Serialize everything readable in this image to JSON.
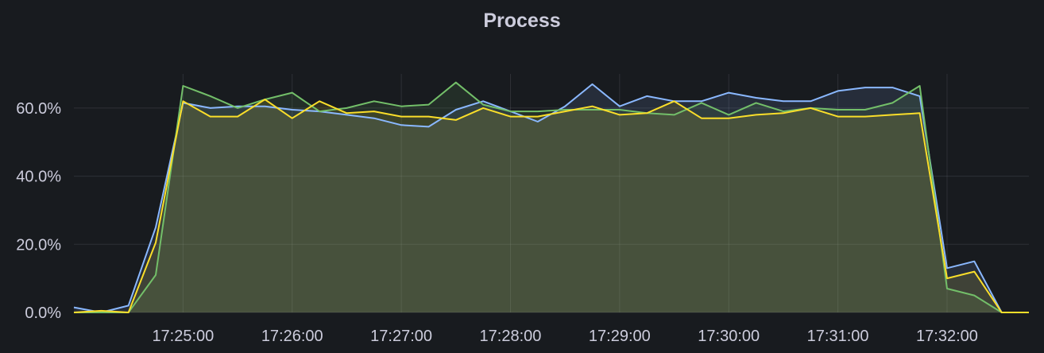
{
  "panel": {
    "title": "Process"
  },
  "chart_data": {
    "type": "area",
    "title": "Process",
    "xlabel": "",
    "ylabel": "",
    "grid": true,
    "legend": "none",
    "ylim": [
      0,
      70
    ],
    "yticks": [
      0,
      20,
      40,
      60
    ],
    "ytick_labels": [
      "0.0%",
      "20.0%",
      "40.0%",
      "60.0%"
    ],
    "xlim": [
      "17:24:00",
      "17:32:45"
    ],
    "xticks": [
      "17:25:00",
      "17:26:00",
      "17:27:00",
      "17:28:00",
      "17:29:00",
      "17:30:00",
      "17:31:00",
      "17:32:00"
    ],
    "x": [
      "17:24:00",
      "17:24:15",
      "17:24:30",
      "17:24:45",
      "17:25:00",
      "17:25:15",
      "17:25:30",
      "17:25:45",
      "17:26:00",
      "17:26:15",
      "17:26:30",
      "17:26:45",
      "17:27:00",
      "17:27:15",
      "17:27:30",
      "17:27:45",
      "17:28:00",
      "17:28:15",
      "17:28:30",
      "17:28:45",
      "17:29:00",
      "17:29:15",
      "17:29:30",
      "17:29:45",
      "17:30:00",
      "17:30:15",
      "17:30:30",
      "17:30:45",
      "17:31:00",
      "17:31:15",
      "17:31:30",
      "17:31:45",
      "17:32:00",
      "17:32:15",
      "17:32:30",
      "17:32:45"
    ],
    "series": [
      {
        "color": "#8ab8ff",
        "values": [
          1.5,
          0,
          2,
          25,
          61.5,
          60,
          60.5,
          60.5,
          59.5,
          59,
          58,
          57,
          55,
          54.5,
          59.5,
          62,
          59,
          56,
          60.5,
          67,
          60.5,
          63.5,
          62,
          62,
          64.5,
          63,
          62,
          62,
          65,
          66,
          66,
          63.5,
          13,
          15,
          0,
          0
        ]
      },
      {
        "color": "#73bf69",
        "values": [
          0,
          0,
          0,
          11,
          66.5,
          63.5,
          60,
          62.5,
          64.5,
          59,
          60,
          62,
          60.5,
          61,
          67.5,
          61,
          59,
          59,
          59.5,
          59.5,
          59.5,
          58.5,
          58,
          61.5,
          58,
          61.5,
          59,
          60,
          59.5,
          59.5,
          61.5,
          66.5,
          7,
          5,
          0,
          0
        ]
      },
      {
        "color": "#fade2a",
        "values": [
          0,
          0.5,
          0,
          20.5,
          62,
          57.5,
          57.5,
          62.5,
          57,
          62,
          58.5,
          59,
          57.5,
          57.5,
          56.5,
          60,
          57.5,
          57.5,
          59,
          60.5,
          58,
          58.5,
          62,
          57,
          57,
          58,
          58.5,
          60,
          57.5,
          57.5,
          58,
          58.5,
          10,
          12,
          0,
          0
        ]
      }
    ]
  }
}
